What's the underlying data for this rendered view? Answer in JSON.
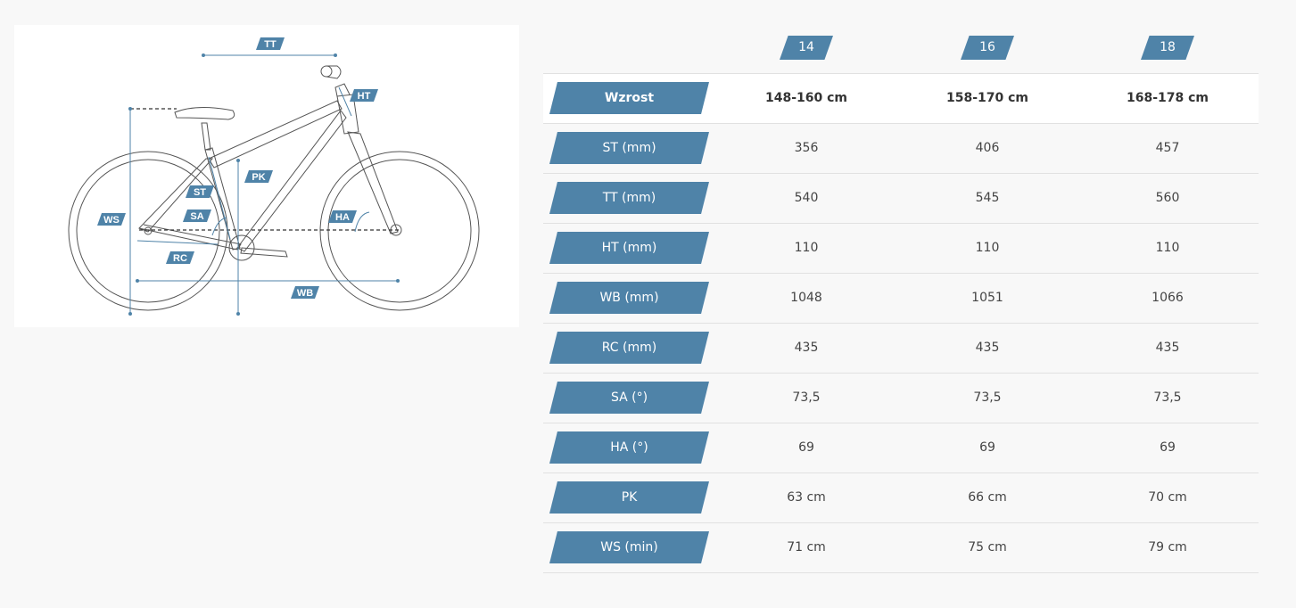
{
  "diagram": {
    "labels": {
      "tt": "TT",
      "ht": "HT",
      "pk": "PK",
      "st": "ST",
      "sa": "SA",
      "ws": "WS",
      "ha": "HA",
      "rc": "RC",
      "wb": "WB"
    },
    "colors": {
      "accent": "#4f83a8",
      "line": "#555555"
    }
  },
  "table": {
    "sizes": [
      "14",
      "16",
      "18"
    ],
    "rows": [
      {
        "label": "Wzrost",
        "values": [
          "148-160 cm",
          "158-170 cm",
          "168-178 cm"
        ]
      },
      {
        "label": "ST (mm)",
        "values": [
          "356",
          "406",
          "457"
        ]
      },
      {
        "label": "TT (mm)",
        "values": [
          "540",
          "545",
          "560"
        ]
      },
      {
        "label": "HT (mm)",
        "values": [
          "110",
          "110",
          "110"
        ]
      },
      {
        "label": "WB (mm)",
        "values": [
          "1048",
          "1051",
          "1066"
        ]
      },
      {
        "label": "RC (mm)",
        "values": [
          "435",
          "435",
          "435"
        ]
      },
      {
        "label": "SA (°)",
        "values": [
          "73,5",
          "73,5",
          "73,5"
        ]
      },
      {
        "label": "HA (°)",
        "values": [
          "69",
          "69",
          "69"
        ]
      },
      {
        "label": "PK",
        "values": [
          "63 cm",
          "66 cm",
          "70 cm"
        ]
      },
      {
        "label": "WS (min)",
        "values": [
          "71 cm",
          "75 cm",
          "79 cm"
        ]
      }
    ]
  }
}
